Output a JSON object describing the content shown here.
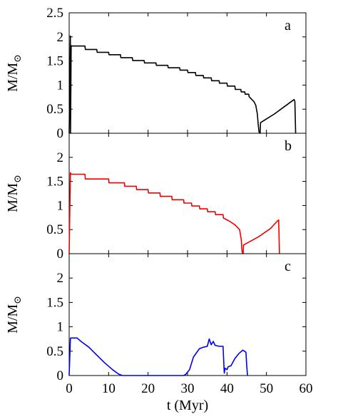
{
  "chart_data": [
    {
      "type": "line",
      "panel_label": "a",
      "ylabel": "M/M",
      "ylabel_symbol": "⊙",
      "ylim": [
        0,
        2.5
      ],
      "xlim": [
        0,
        60
      ],
      "yticks": [
        "0",
        "0.5",
        "1",
        "1.5",
        "2",
        "2.5"
      ],
      "xticks": [],
      "color": "#000000",
      "series": [
        {
          "x": [
            0,
            0.3,
            0.35,
            0.5,
            0.6,
            4,
            4.1,
            7,
            7.1,
            10,
            10.1,
            13,
            13.1,
            16,
            16.1,
            19,
            19.1,
            22,
            22.1,
            25,
            25.1,
            28,
            28.1,
            30,
            30.1,
            32,
            32.1,
            34,
            34.1,
            36,
            36.1,
            38,
            38.1,
            40,
            40.1,
            42,
            42.1,
            43.5,
            43.6,
            44.5,
            44.6,
            45.5,
            45.6,
            46.3,
            46.8,
            47.3,
            47.7,
            47.9,
            48.1,
            48.3,
            48.4,
            48.5,
            52,
            55,
            56,
            57,
            57.2,
            57.4
          ],
          "y": [
            0,
            2.02,
            0,
            1.82,
            1.81,
            1.81,
            1.74,
            1.74,
            1.68,
            1.68,
            1.63,
            1.63,
            1.57,
            1.57,
            1.51,
            1.51,
            1.46,
            1.46,
            1.41,
            1.41,
            1.36,
            1.36,
            1.31,
            1.31,
            1.26,
            1.26,
            1.2,
            1.2,
            1.15,
            1.15,
            1.09,
            1.09,
            1.04,
            1.04,
            0.98,
            0.98,
            0.91,
            0.91,
            0.86,
            0.86,
            0.81,
            0.81,
            0.76,
            0.7,
            0.66,
            0.58,
            0.4,
            0.2,
            0.03,
            0,
            0,
            0.22,
            0.4,
            0.58,
            0.64,
            0.7,
            0.66,
            0
          ]
        }
      ]
    },
    {
      "type": "line",
      "panel_label": "b",
      "ylabel": "M/M",
      "ylabel_symbol": "⊙",
      "ylim": [
        0,
        2.5
      ],
      "xlim": [
        0,
        60
      ],
      "yticks": [
        "0",
        "0.5",
        "1",
        "1.5",
        "2"
      ],
      "xticks": [],
      "color": "#ee0000",
      "series": [
        {
          "x": [
            0,
            0.3,
            0.4,
            0.6,
            4,
            4.1,
            10,
            10.1,
            14,
            14.1,
            17,
            17.1,
            20,
            20.1,
            23,
            23.1,
            26,
            26.1,
            29,
            29.1,
            31,
            31.1,
            33,
            33.1,
            35,
            35.1,
            37,
            37.1,
            39,
            39.1,
            40.5,
            42,
            43.2,
            43.6,
            43.8,
            44,
            44.1,
            44.2,
            48,
            51,
            52.8,
            53.1,
            53.3
          ],
          "y": [
            0,
            1.68,
            1.66,
            1.65,
            1.65,
            1.55,
            1.55,
            1.47,
            1.47,
            1.4,
            1.4,
            1.33,
            1.33,
            1.26,
            1.26,
            1.19,
            1.19,
            1.12,
            1.12,
            1.05,
            1.05,
            0.99,
            0.99,
            0.93,
            0.93,
            0.87,
            0.87,
            0.81,
            0.81,
            0.74,
            0.68,
            0.6,
            0.5,
            0.3,
            0.05,
            0,
            0,
            0.18,
            0.35,
            0.52,
            0.68,
            0.7,
            0
          ]
        }
      ]
    },
    {
      "type": "line",
      "panel_label": "c",
      "ylabel": "M/M",
      "ylabel_symbol": "⊙",
      "ylim": [
        0,
        2.5
      ],
      "xlim": [
        0,
        60
      ],
      "xlabel": "t (Myr)",
      "yticks": [
        "0",
        "0.5",
        "1",
        "1.5",
        "2"
      ],
      "xticks": [
        "0",
        "10",
        "20",
        "30",
        "40",
        "50",
        "60"
      ],
      "color": "#0000ee",
      "series": [
        {
          "x": [
            0,
            0.3,
            0.4,
            2,
            3,
            5,
            7,
            9,
            11,
            12.5,
            13.5,
            20,
            29,
            29.5,
            30.5,
            31.5,
            33,
            34,
            35,
            35.5,
            36,
            36.5,
            37,
            38,
            39,
            39.3,
            39.5,
            40,
            40.3,
            41,
            42,
            43,
            44,
            44.8,
            45,
            45.2
          ],
          "y": [
            0,
            0.76,
            0.77,
            0.77,
            0.7,
            0.58,
            0.42,
            0.26,
            0.12,
            0.03,
            0,
            0,
            0,
            0.02,
            0.12,
            0.38,
            0.55,
            0.58,
            0.6,
            0.75,
            0.63,
            0.7,
            0.62,
            0.6,
            0.6,
            0.05,
            0.15,
            0.12,
            0.18,
            0.2,
            0.35,
            0.45,
            0.52,
            0.48,
            0.2,
            0
          ]
        }
      ]
    }
  ]
}
